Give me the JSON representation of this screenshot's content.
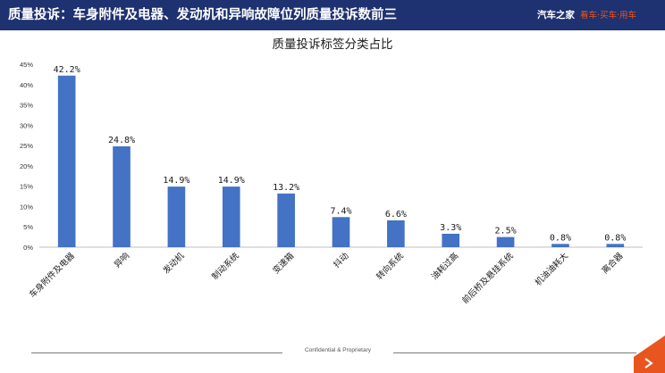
{
  "header": {
    "title": "质量投诉：车身附件及电器、发动机和异响故障位列质量投诉数前三",
    "brand_name": "汽车之家",
    "brand_slogan": "看车·买车·用车"
  },
  "footer": {
    "text": "Confidential & Proprietary"
  },
  "colors": {
    "header_bg": "#1e3170",
    "bar": "#4472c4",
    "accent": "#e8551f"
  },
  "chart_data": {
    "type": "bar",
    "title": "质量投诉标签分类占比",
    "categories": [
      "车身附件及电器",
      "异响",
      "发动机",
      "制动系统",
      "变速箱",
      "抖动",
      "转向系统",
      "油耗过高",
      "前后桥及悬挂系统",
      "机油油耗大",
      "离合器"
    ],
    "values": [
      42.2,
      24.8,
      14.9,
      14.9,
      13.2,
      7.4,
      6.6,
      3.3,
      2.5,
      0.8,
      0.8
    ],
    "value_labels": [
      "42.2%",
      "24.8%",
      "14.9%",
      "14.9%",
      "13.2%",
      "7.4%",
      "6.6%",
      "3.3%",
      "2.5%",
      "0.8%",
      "0.8%"
    ],
    "yticks": [
      0,
      5,
      10,
      15,
      20,
      25,
      30,
      35,
      40,
      45
    ],
    "ytick_labels": [
      "0%",
      "5%",
      "10%",
      "15%",
      "20%",
      "25%",
      "30%",
      "35%",
      "40%",
      "45%"
    ],
    "ylim": [
      0,
      45
    ],
    "xlabel": "",
    "ylabel": "",
    "grid": false,
    "legend": "none"
  }
}
